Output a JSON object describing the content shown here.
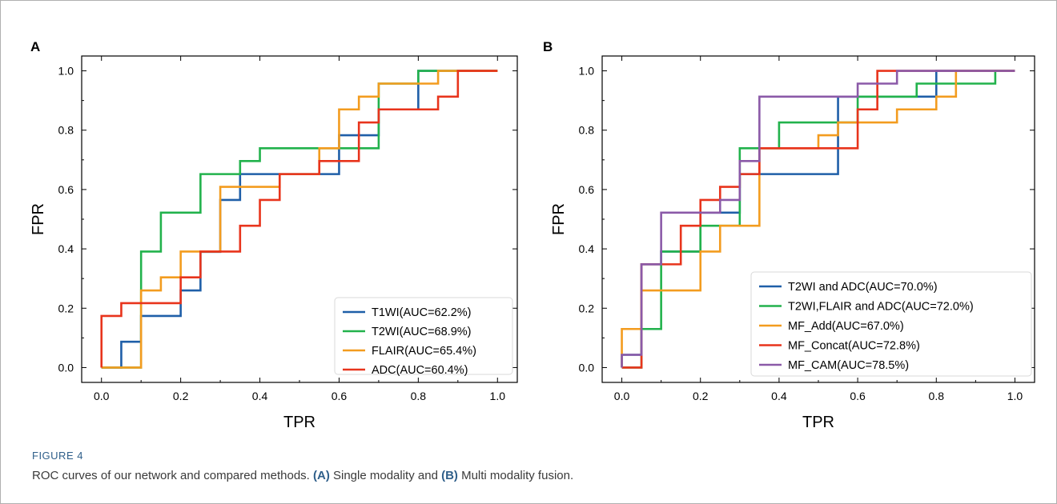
{
  "figure": {
    "label": "FIGURE 4",
    "caption_lead": "ROC curves of our network and compared methods. ",
    "caption_a_tag": "(A)",
    "caption_a_text": " Single modality and ",
    "caption_b_tag": "(B)",
    "caption_b_text": " Multi modality fusion."
  },
  "chart_data": [
    {
      "panel": "A",
      "type": "line",
      "xlabel": "TPR",
      "ylabel": "FPR",
      "xlim": [
        -0.05,
        1.05
      ],
      "ylim": [
        -0.05,
        1.05
      ],
      "xticks": [
        "0.0",
        "0.2",
        "0.4",
        "0.6",
        "0.8",
        "1.0"
      ],
      "yticks": [
        "0.0",
        "0.2",
        "0.4",
        "0.6",
        "0.8",
        "1.0"
      ],
      "grid": false,
      "legend": "bottom-right",
      "series": [
        {
          "name": "T1WI(AUC=62.2%)",
          "color": "#1f5fa8",
          "x": [
            0,
            0.05,
            0.05,
            0.1,
            0.1,
            0.2,
            0.2,
            0.25,
            0.25,
            0.3,
            0.3,
            0.35,
            0.35,
            0.45,
            0.45,
            0.6,
            0.6,
            0.7,
            0.7,
            0.75,
            0.75,
            0.8,
            0.8,
            1.0
          ],
          "y": [
            0,
            0,
            0.087,
            0.087,
            0.174,
            0.174,
            0.26,
            0.26,
            0.39,
            0.39,
            0.565,
            0.565,
            0.652,
            0.652,
            0.652,
            0.652,
            0.783,
            0.783,
            0.87,
            0.87,
            0.87,
            0.87,
            1.0,
            1.0
          ]
        },
        {
          "name": "T2WI(AUC=68.9%)",
          "color": "#22b24c",
          "x": [
            0,
            0.1,
            0.1,
            0.15,
            0.15,
            0.25,
            0.25,
            0.35,
            0.35,
            0.4,
            0.4,
            0.7,
            0.7,
            0.8,
            0.8,
            1.0
          ],
          "y": [
            0,
            0,
            0.391,
            0.391,
            0.522,
            0.522,
            0.652,
            0.652,
            0.696,
            0.696,
            0.739,
            0.739,
            0.957,
            0.957,
            1.0,
            1.0
          ]
        },
        {
          "name": "FLAIR(AUC=65.4%)",
          "color": "#f39c1f",
          "x": [
            0,
            0.05,
            0.05,
            0.1,
            0.1,
            0.15,
            0.15,
            0.2,
            0.2,
            0.3,
            0.3,
            0.45,
            0.45,
            0.55,
            0.55,
            0.6,
            0.6,
            0.65,
            0.65,
            0.7,
            0.7,
            0.85,
            0.85,
            1.0
          ],
          "y": [
            0,
            0,
            0,
            0,
            0.26,
            0.26,
            0.304,
            0.304,
            0.391,
            0.391,
            0.609,
            0.609,
            0.652,
            0.652,
            0.739,
            0.739,
            0.87,
            0.87,
            0.913,
            0.913,
            0.957,
            0.957,
            1.0,
            1.0
          ]
        },
        {
          "name": "ADC(AUC=60.4%)",
          "color": "#e8341c",
          "x": [
            0,
            0,
            0.05,
            0.05,
            0.2,
            0.2,
            0.25,
            0.25,
            0.35,
            0.35,
            0.4,
            0.4,
            0.45,
            0.45,
            0.55,
            0.55,
            0.65,
            0.65,
            0.7,
            0.7,
            0.8,
            0.8,
            0.85,
            0.85,
            0.9,
            0.9,
            1.0
          ],
          "y": [
            0,
            0.174,
            0.174,
            0.217,
            0.217,
            0.304,
            0.304,
            0.391,
            0.391,
            0.478,
            0.478,
            0.565,
            0.565,
            0.652,
            0.652,
            0.696,
            0.696,
            0.826,
            0.826,
            0.87,
            0.87,
            0.87,
            0.87,
            0.913,
            0.913,
            1.0,
            1.0
          ]
        }
      ]
    },
    {
      "panel": "B",
      "type": "line",
      "xlabel": "TPR",
      "ylabel": "FPR",
      "xlim": [
        -0.05,
        1.05
      ],
      "ylim": [
        -0.05,
        1.05
      ],
      "xticks": [
        "0.0",
        "0.2",
        "0.4",
        "0.6",
        "0.8",
        "1.0"
      ],
      "yticks": [
        "0.0",
        "0.2",
        "0.4",
        "0.6",
        "0.8",
        "1.0"
      ],
      "grid": false,
      "legend": "bottom-right",
      "series": [
        {
          "name": "T2WI and ADC(AUC=70.0%)",
          "color": "#1f5fa8",
          "x": [
            0,
            0,
            0.05,
            0.05,
            0.1,
            0.1,
            0.2,
            0.2,
            0.3,
            0.3,
            0.35,
            0.35,
            0.55,
            0.55,
            0.8,
            0.8,
            1.0
          ],
          "y": [
            0,
            0.043,
            0.043,
            0.348,
            0.348,
            0.391,
            0.391,
            0.522,
            0.522,
            0.652,
            0.652,
            0.652,
            0.652,
            0.913,
            0.913,
            1.0,
            1.0
          ]
        },
        {
          "name": "T2WI,FLAIR and ADC(AUC=72.0%)",
          "color": "#22b24c",
          "x": [
            0,
            0.05,
            0.05,
            0.1,
            0.1,
            0.2,
            0.2,
            0.3,
            0.3,
            0.35,
            0.35,
            0.4,
            0.4,
            0.6,
            0.6,
            0.75,
            0.75,
            0.95,
            0.95,
            1.0
          ],
          "y": [
            0,
            0,
            0.13,
            0.13,
            0.391,
            0.391,
            0.478,
            0.478,
            0.739,
            0.739,
            0.739,
            0.739,
            0.826,
            0.826,
            0.913,
            0.913,
            0.957,
            0.957,
            1.0,
            1.0
          ]
        },
        {
          "name": "MF_Add(AUC=67.0%)",
          "color": "#f39c1f",
          "x": [
            0,
            0,
            0.05,
            0.05,
            0.2,
            0.2,
            0.25,
            0.25,
            0.35,
            0.35,
            0.5,
            0.5,
            0.55,
            0.55,
            0.7,
            0.7,
            0.8,
            0.8,
            0.85,
            0.85,
            1.0
          ],
          "y": [
            0,
            0.13,
            0.13,
            0.26,
            0.26,
            0.391,
            0.391,
            0.478,
            0.478,
            0.739,
            0.739,
            0.783,
            0.783,
            0.826,
            0.826,
            0.87,
            0.87,
            0.913,
            0.913,
            1.0,
            1.0
          ]
        },
        {
          "name": "MF_Concat(AUC=72.8%)",
          "color": "#e8341c",
          "x": [
            0,
            0.05,
            0.05,
            0.1,
            0.1,
            0.15,
            0.15,
            0.2,
            0.2,
            0.25,
            0.25,
            0.3,
            0.3,
            0.35,
            0.35,
            0.6,
            0.6,
            0.65,
            0.65,
            1.0
          ],
          "y": [
            0,
            0,
            0.348,
            0.348,
            0.348,
            0.348,
            0.478,
            0.478,
            0.565,
            0.565,
            0.609,
            0.609,
            0.652,
            0.652,
            0.739,
            0.739,
            0.87,
            0.87,
            1.0,
            1.0
          ]
        },
        {
          "name": "MF_CAM(AUC=78.5%)",
          "color": "#8b5aa8",
          "x": [
            0,
            0,
            0.05,
            0.05,
            0.1,
            0.1,
            0.25,
            0.25,
            0.3,
            0.3,
            0.35,
            0.35,
            0.6,
            0.6,
            0.7,
            0.7,
            1.0
          ],
          "y": [
            0,
            0.043,
            0.043,
            0.348,
            0.348,
            0.522,
            0.522,
            0.565,
            0.565,
            0.696,
            0.696,
            0.913,
            0.913,
            0.957,
            0.957,
            1.0,
            1.0
          ]
        }
      ]
    }
  ]
}
